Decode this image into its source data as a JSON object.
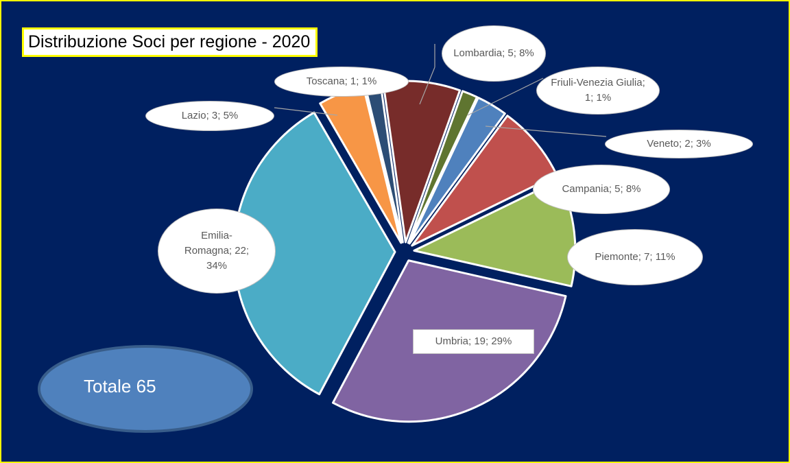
{
  "chart_data": {
    "type": "pie",
    "title": "Distribuzione Soci per regione - 2020",
    "annotation": "Totale 65",
    "categories": [
      "Lombardia",
      "Friuli-Venezia Giulia",
      "Veneto",
      "Campania",
      "Piemonte",
      "Umbria",
      "Emilia-Romagna",
      "Lazio",
      "Toscana"
    ],
    "values": [
      5,
      1,
      2,
      5,
      7,
      19,
      22,
      3,
      1
    ],
    "value_labels": [
      "Lombardia; 5; 8%",
      "Friuli-Venezia Giulia; 1; 1%",
      "Veneto; 2; 3%",
      "Campania; 5; 8%",
      "Piemonte; 7; 11%",
      "Umbria; 19; 29%",
      "Emilia-Romagna; 22; 34%",
      "Lazio; 3; 5%",
      "Toscana; 1; 1%"
    ],
    "colors": [
      "#772c2a",
      "#5f7530",
      "#4f81bd",
      "#c0504d",
      "#9bbb59",
      "#8064a2",
      "#4bacc6",
      "#f79646",
      "#2c4d75"
    ]
  }
}
